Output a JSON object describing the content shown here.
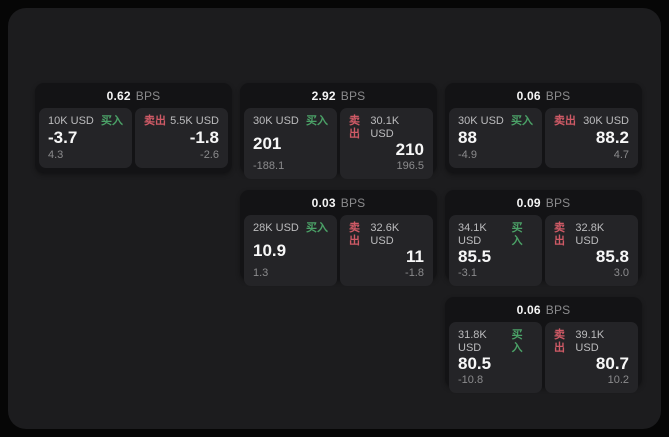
{
  "colors": {
    "page-bg": "#060606",
    "board-bg": "#1c1c1e",
    "card-bg": "#131315",
    "panel-bg": "#242427",
    "buy-green": "#4ba167",
    "sell-red": "#cf5a66"
  },
  "labels": {
    "bps_unit": "BPS",
    "buy": "买入",
    "sell": "卖出"
  },
  "cards": [
    {
      "bps": "0.62",
      "buy": {
        "notional": "10K USD",
        "price": "-3.7",
        "change": "4.3"
      },
      "sell": {
        "notional": "5.5K USD",
        "price": "-1.8",
        "change": "-2.6"
      }
    },
    {
      "bps": "2.92",
      "buy": {
        "notional": "30K USD",
        "price": "201",
        "change": "-188.1"
      },
      "sell": {
        "notional": "30.1K USD",
        "price": "210",
        "change": "196.5"
      }
    },
    {
      "bps": "0.06",
      "buy": {
        "notional": "30K USD",
        "price": "88",
        "change": "-4.9"
      },
      "sell": {
        "notional": "30K USD",
        "price": "88.2",
        "change": "4.7"
      }
    },
    {
      "bps": "0.03",
      "buy": {
        "notional": "28K USD",
        "price": "10.9",
        "change": "1.3"
      },
      "sell": {
        "notional": "32.6K USD",
        "price": "11",
        "change": "-1.8"
      }
    },
    {
      "bps": "0.09",
      "buy": {
        "notional": "34.1K USD",
        "price": "85.5",
        "change": "-3.1"
      },
      "sell": {
        "notional": "32.8K USD",
        "price": "85.8",
        "change": "3.0"
      }
    },
    {
      "bps": "0.06",
      "buy": {
        "notional": "31.8K USD",
        "price": "80.5",
        "change": "-10.8"
      },
      "sell": {
        "notional": "39.1K USD",
        "price": "80.7",
        "change": "10.2"
      }
    }
  ]
}
